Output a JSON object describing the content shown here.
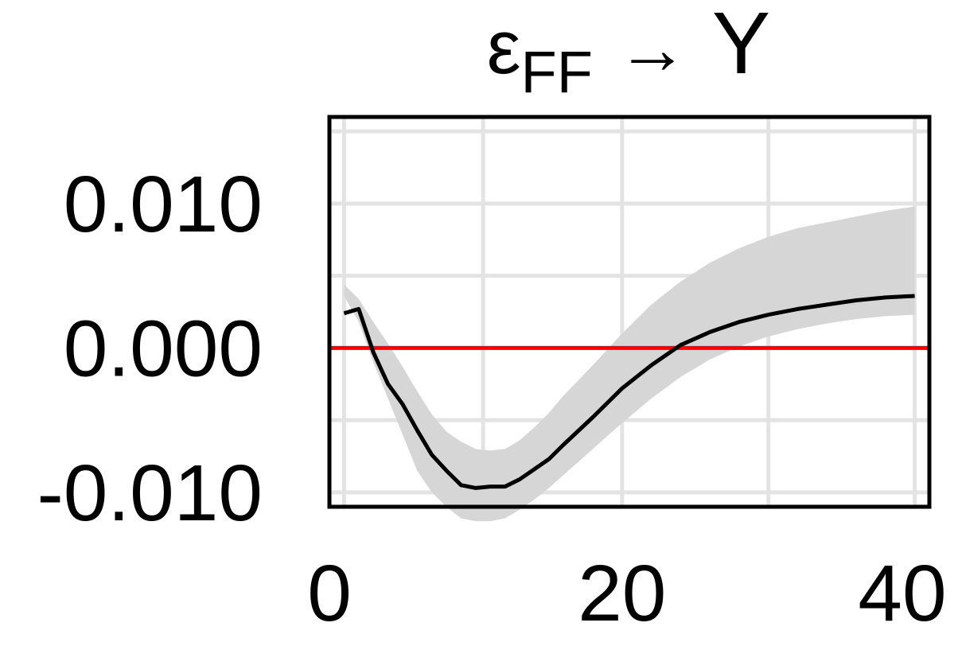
{
  "chart_data": {
    "type": "line",
    "title": {
      "main": "ε",
      "subscript": "FF",
      "arrow": "→",
      "target": "Y"
    },
    "xlabel": "",
    "ylabel": "",
    "xlim": [
      0,
      41
    ],
    "ylim": [
      -0.011,
      0.016
    ],
    "x_ticks": [
      0,
      20,
      40
    ],
    "x_tick_labels": [
      "0",
      "20",
      "40"
    ],
    "y_ticks": [
      -0.01,
      0.0,
      0.01
    ],
    "y_tick_labels": [
      "-0.010",
      "0.000",
      "0.010"
    ],
    "grid": true,
    "reference_line": {
      "y": 0.0,
      "color": "#ff0000"
    },
    "band_color": "#d6d6d6",
    "line_color": "#000000",
    "series": [
      {
        "x": [
          1,
          2,
          3,
          4,
          5,
          6,
          7,
          8,
          9,
          10,
          11,
          12,
          13,
          14,
          15,
          16,
          18,
          20,
          22,
          24,
          26,
          28,
          30,
          32,
          34,
          36,
          38,
          40
        ],
        "y": [
          0.0024,
          0.0027,
          -0.0003,
          -0.0025,
          -0.0039,
          -0.0057,
          -0.0074,
          -0.0085,
          -0.0095,
          -0.0097,
          -0.0096,
          -0.0096,
          -0.0091,
          -0.0084,
          -0.0077,
          -0.0067,
          -0.0048,
          -0.0028,
          -0.0012,
          0.0002,
          0.0011,
          0.0018,
          0.0023,
          0.0027,
          0.003,
          0.0033,
          0.0035,
          0.0036
        ],
        "lower": [
          0.0036,
          0.0018,
          -0.001,
          -0.0035,
          -0.006,
          -0.0085,
          -0.01,
          -0.011,
          -0.0118,
          -0.012,
          -0.012,
          -0.0118,
          -0.0112,
          -0.0105,
          -0.0097,
          -0.0088,
          -0.007,
          -0.0052,
          -0.0035,
          -0.002,
          -0.0008,
          0.0001,
          0.0008,
          0.0013,
          0.0017,
          0.002,
          0.0022,
          0.0023
        ],
        "upper": [
          0.0044,
          0.0034,
          0.0018,
          0.0003,
          -0.0013,
          -0.003,
          -0.0046,
          -0.0058,
          -0.0065,
          -0.007,
          -0.0071,
          -0.007,
          -0.0064,
          -0.0055,
          -0.0045,
          -0.0033,
          -0.0012,
          0.001,
          0.003,
          0.0046,
          0.0059,
          0.0069,
          0.0077,
          0.0083,
          0.0087,
          0.0091,
          0.0095,
          0.0098
        ]
      }
    ]
  }
}
